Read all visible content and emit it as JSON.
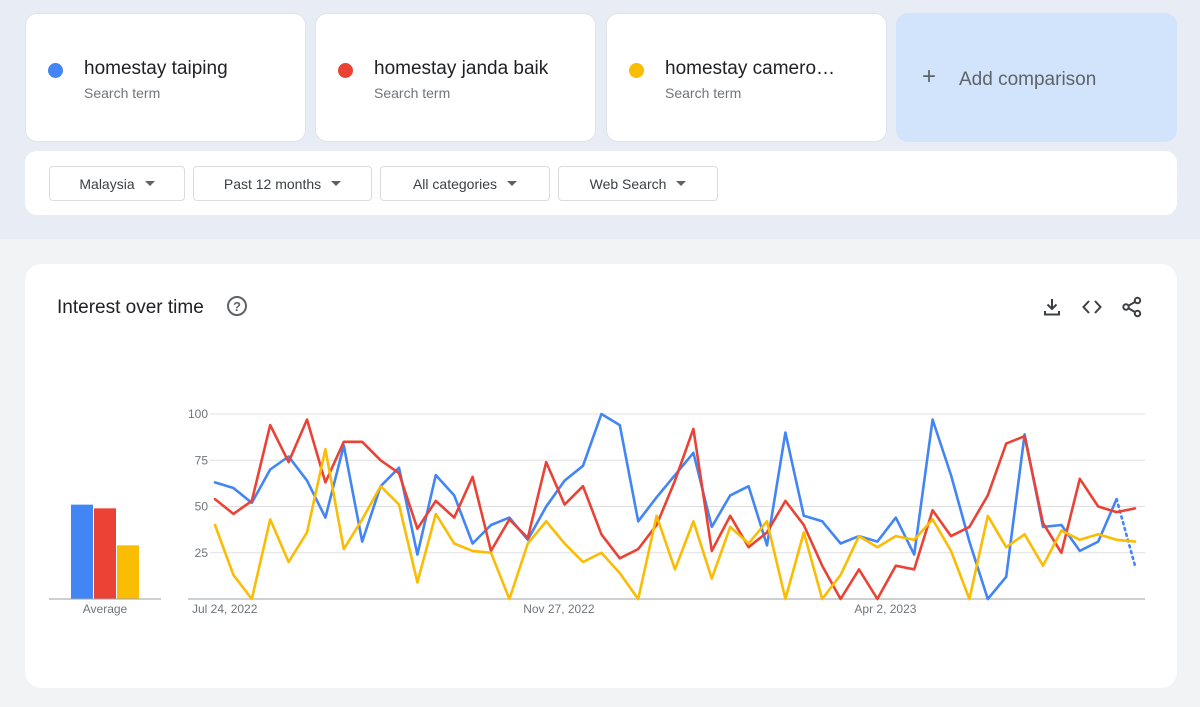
{
  "terms": [
    {
      "name": "homestay taiping",
      "sub": "Search term",
      "color": "#4285f4"
    },
    {
      "name": "homestay janda baik",
      "sub": "Search term",
      "color": "#ea4335"
    },
    {
      "name": "homestay cameron highlands",
      "sub": "Search term",
      "color": "#fbbc04"
    }
  ],
  "add_comparison": {
    "label": "Add comparison",
    "plus": "+"
  },
  "filters": [
    {
      "label": "Malaysia"
    },
    {
      "label": "Past 12 months"
    },
    {
      "label": "All categories"
    },
    {
      "label": "Web Search"
    }
  ],
  "chart": {
    "title": "Interest over time",
    "help": "?",
    "toolbar": [
      "download-icon",
      "embed-icon",
      "share-icon"
    ]
  },
  "chart_data": {
    "type": "line",
    "ylim": [
      0,
      100
    ],
    "yticks": [
      "100",
      "75",
      "50",
      "25"
    ],
    "x_labels": [
      {
        "label": "Jul 24, 2022",
        "index": 0
      },
      {
        "label": "Nov 27, 2022",
        "index": 18
      },
      {
        "label": "Apr 2, 2023",
        "index": 36
      }
    ],
    "average": {
      "label": "Average",
      "values": [
        51,
        49,
        29
      ]
    },
    "series": [
      {
        "name": "homestay taiping",
        "color": "#4285f4",
        "partial_last": true,
        "values": [
          63,
          60,
          52,
          70,
          77,
          64,
          44,
          83,
          31,
          61,
          71,
          24,
          67,
          56,
          30,
          40,
          44,
          32,
          50,
          64,
          72,
          100,
          94,
          42,
          55,
          67,
          79,
          39,
          56,
          61,
          29,
          90,
          45,
          42,
          30,
          34,
          31,
          44,
          24,
          97,
          67,
          31,
          0,
          12,
          89,
          39,
          40,
          26,
          31,
          54,
          18
        ]
      },
      {
        "name": "homestay janda baik",
        "color": "#ea4335",
        "values": [
          54,
          46,
          53,
          94,
          74,
          97,
          63,
          85,
          85,
          75,
          68,
          38,
          53,
          44,
          66,
          26,
          43,
          33,
          74,
          51,
          61,
          35,
          22,
          27,
          40,
          64,
          92,
          26,
          45,
          28,
          36,
          53,
          40,
          18,
          0,
          16,
          0,
          18,
          16,
          48,
          34,
          39,
          56,
          84,
          88,
          41,
          25,
          65,
          50,
          47,
          49
        ]
      },
      {
        "name": "homestay cameron highlands",
        "color": "#fbbc04",
        "values": [
          40,
          13,
          0,
          43,
          20,
          36,
          81,
          27,
          43,
          61,
          51,
          9,
          46,
          30,
          26,
          25,
          0,
          30,
          42,
          30,
          20,
          25,
          14,
          0,
          45,
          16,
          42,
          11,
          39,
          30,
          42,
          0,
          36,
          0,
          13,
          34,
          28,
          34,
          32,
          43,
          26,
          0,
          45,
          28,
          35,
          18,
          37,
          32,
          35,
          32,
          31
        ]
      }
    ]
  }
}
